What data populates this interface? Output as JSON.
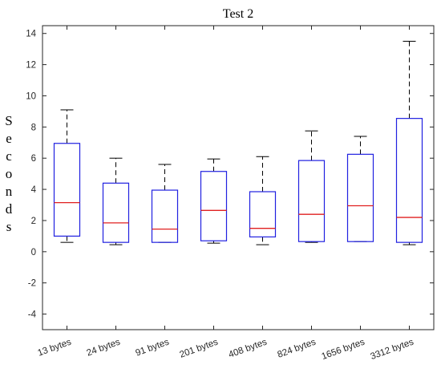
{
  "chart_data": {
    "type": "boxplot",
    "title": "Test 2",
    "ylabel": "Seconds",
    "xlabel": "",
    "ylim": [
      -5,
      14.5
    ],
    "yticks": [
      -4,
      -2,
      0,
      2,
      4,
      6,
      8,
      10,
      12,
      14
    ],
    "grid": false,
    "categories": [
      "13 bytes",
      "24 bytes",
      "91 bytes",
      "201 bytes",
      "408 bytes",
      "824 bytes",
      "1656 bytes",
      "3312 bytes"
    ],
    "boxes": [
      {
        "whisker_low": 0.6,
        "q1": 1.0,
        "median": 3.15,
        "q3": 6.95,
        "whisker_high": 9.1
      },
      {
        "whisker_low": 0.45,
        "q1": 0.6,
        "median": 1.85,
        "q3": 4.4,
        "whisker_high": 6.0
      },
      {
        "whisker_low": 0.6,
        "q1": 0.6,
        "median": 1.45,
        "q3": 3.95,
        "whisker_high": 5.6
      },
      {
        "whisker_low": 0.55,
        "q1": 0.7,
        "median": 2.65,
        "q3": 5.15,
        "whisker_high": 5.95
      },
      {
        "whisker_low": 0.45,
        "q1": 0.95,
        "median": 1.5,
        "q3": 3.85,
        "whisker_high": 6.1
      },
      {
        "whisker_low": 0.6,
        "q1": 0.65,
        "median": 2.4,
        "q3": 5.85,
        "whisker_high": 7.75
      },
      {
        "whisker_low": 0.65,
        "q1": 0.65,
        "median": 2.95,
        "q3": 6.25,
        "whisker_high": 7.4
      },
      {
        "whisker_low": 0.45,
        "q1": 0.6,
        "median": 2.2,
        "q3": 8.55,
        "whisker_high": 13.5
      }
    ],
    "colors": {
      "box": "#2020e0",
      "median": "#e02020",
      "whisker": "#000000",
      "axes": "#262626"
    }
  }
}
